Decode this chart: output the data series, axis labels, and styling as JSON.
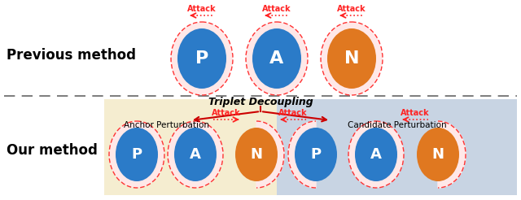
{
  "blue_color": "#2B7BC8",
  "orange_color": "#E07820",
  "dash_color": "#FF3333",
  "bg_anchor": "#F5EDD0",
  "bg_candidate": "#C8D4E3",
  "attack_color": "#FF2222",
  "arrow_color": "#CC0000",
  "title_previous": "Previous method",
  "title_our": "Our method",
  "triplet_decoupling": "Triplet Decoupling",
  "anchor_perturbation": "Anchor Perturbation",
  "candidate_perturbation": "Candidate Perturbation"
}
